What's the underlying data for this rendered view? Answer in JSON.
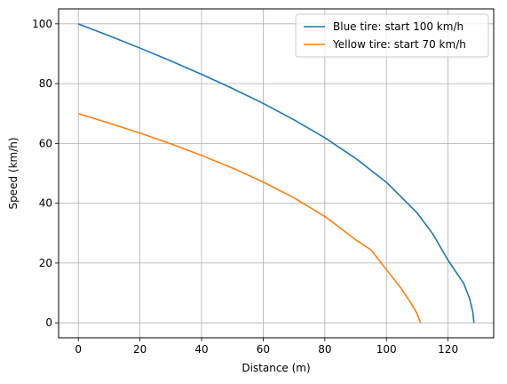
{
  "chart_data": {
    "type": "line",
    "xlabel": "Distance (m)",
    "ylabel": "Speed (km/h)",
    "xlim": [
      -6.4,
      134.8
    ],
    "ylim": [
      -5,
      105
    ],
    "xticks": [
      0,
      20,
      40,
      60,
      80,
      100,
      120
    ],
    "yticks": [
      0,
      20,
      40,
      60,
      80,
      100
    ],
    "grid": true,
    "legend_position": "top-right",
    "series": [
      {
        "name": "Blue tire: start 100 km/h",
        "color": "#1f77b4",
        "x": [
          0,
          10,
          20,
          30,
          40,
          50,
          60,
          70,
          80,
          90,
          100,
          110,
          115,
          120,
          125,
          127,
          128,
          128.4
        ],
        "y": [
          100,
          96.0,
          91.9,
          87.6,
          83.1,
          78.4,
          73.4,
          67.9,
          61.9,
          55.0,
          47.0,
          36.7,
          29.8,
          20.9,
          13.3,
          8.1,
          3.8,
          0
        ]
      },
      {
        "name": "Yellow tire: start 70 km/h",
        "color": "#ff7f0e",
        "x": [
          0,
          10,
          20,
          30,
          40,
          50,
          60,
          70,
          80,
          90,
          95,
          100,
          105,
          108,
          110,
          111.0
        ],
        "y": [
          70,
          66.8,
          63.5,
          59.9,
          56.0,
          51.8,
          47.1,
          41.8,
          35.6,
          27.8,
          24.4,
          17.8,
          11.2,
          6.5,
          3.0,
          0
        ]
      }
    ]
  }
}
